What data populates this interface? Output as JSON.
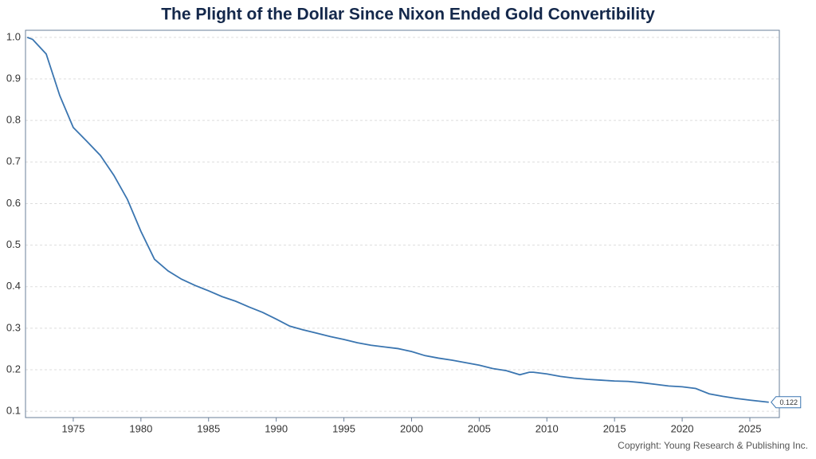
{
  "chart_data": {
    "type": "line",
    "title": "The Plight of the Dollar Since Nixon Ended Gold Convertibility",
    "source": "Copyright: Young Research & Publishing Inc.",
    "series": [
      {
        "color": "#3a75b0",
        "x": [
          1971.6,
          1972,
          1973,
          1974,
          1975,
          1976,
          1977,
          1978,
          1979,
          1980,
          1981,
          1982,
          1983,
          1984,
          1985,
          1986,
          1987,
          1988,
          1989,
          1990,
          1991,
          1992,
          1993,
          1994,
          1995,
          1996,
          1997,
          1998,
          1999,
          2000,
          2001,
          2002,
          2003,
          2004,
          2005,
          2006,
          2007,
          2008,
          2008.7,
          2009,
          2010,
          2011,
          2012,
          2013,
          2014,
          2015,
          2016,
          2017,
          2018,
          2019,
          2020,
          2021,
          2022,
          2023,
          2024,
          2025,
          2026.4
        ],
        "values": [
          1.0,
          0.995,
          0.96,
          0.86,
          0.783,
          0.75,
          0.716,
          0.668,
          0.61,
          0.533,
          0.466,
          0.438,
          0.418,
          0.403,
          0.39,
          0.376,
          0.365,
          0.351,
          0.338,
          0.322,
          0.305,
          0.296,
          0.288,
          0.28,
          0.273,
          0.265,
          0.259,
          0.255,
          0.251,
          0.244,
          0.234,
          0.228,
          0.223,
          0.217,
          0.211,
          0.203,
          0.198,
          0.188,
          0.194,
          0.194,
          0.19,
          0.184,
          0.18,
          0.177,
          0.175,
          0.173,
          0.172,
          0.169,
          0.165,
          0.161,
          0.159,
          0.155,
          0.142,
          0.136,
          0.131,
          0.127,
          0.122
        ]
      }
    ],
    "xlim": [
      1971.47,
      2027.18
    ],
    "xticks": [
      1975,
      1980,
      1985,
      1990,
      1995,
      2000,
      2005,
      2010,
      2015,
      2020,
      2025
    ],
    "ylim": [
      0.085,
      1.017
    ],
    "yticks": [
      0.1,
      0.2,
      0.3,
      0.4,
      0.5,
      0.6,
      0.7,
      0.8,
      0.9,
      {
        "value": 1,
        "label": "1.0"
      }
    ],
    "grid": true
  }
}
